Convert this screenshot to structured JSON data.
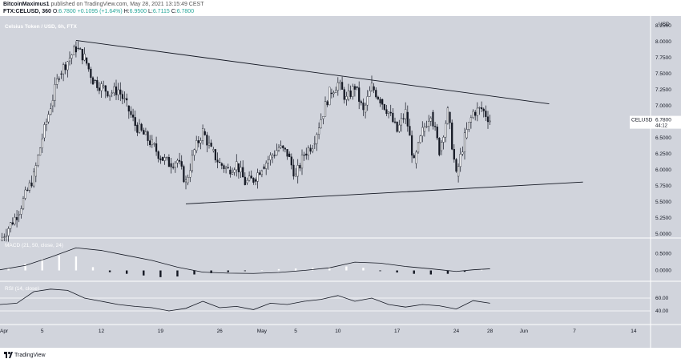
{
  "header": {
    "author": "BitcoinMaximus1",
    "published_text": "published on TradingView.com, May 28, 2021 13:15:49 CEST",
    "symbol": "FTX:CELUSD, 360",
    "o_label": "O:",
    "o_value": "6.7800",
    "change": "+0.1095 (+1.64%)",
    "h_label": "H:",
    "h_value": "6.9500",
    "l_label": "L:",
    "l_value": "6.7115",
    "c_label": "C:",
    "c_value": "6.7800"
  },
  "footer": {
    "brand": "TradingView"
  },
  "colors": {
    "background": "#d1d4dc",
    "candle": "#131722",
    "line": "#131722",
    "grid": "#c7cad2",
    "price_tag": "#ffffff"
  },
  "chart_data": [
    {
      "type": "line",
      "title": "Celsius Token / USD, 6h, FTX",
      "subtype": "candlestick",
      "y_axis_label": "USD",
      "y_ticks": [
        "8.2500",
        "8.0000",
        "7.7500",
        "7.5000",
        "7.2500",
        "7.0000",
        "6.7500",
        "6.5000",
        "6.2500",
        "6.0000",
        "5.7500",
        "5.5000",
        "5.2500",
        "5.0000"
      ],
      "ylim": [
        4.95,
        8.35
      ],
      "x_ticks": [
        "Apr",
        "5",
        "12",
        "19",
        "26",
        "May",
        "5",
        "10",
        "17",
        "24",
        "28",
        "Jun",
        "7",
        "14"
      ],
      "x_range": [
        "2021-03-31",
        "2021-06-16"
      ],
      "last_price": {
        "label": "CELUSD",
        "value": "6.7800",
        "countdown": "44:12"
      },
      "trendlines": [
        {
          "name": "upper",
          "from": [
            "2021-04-09",
            8.02
          ],
          "to": [
            "2021-06-04",
            7.03
          ]
        },
        {
          "name": "lower",
          "from": [
            "2021-04-22",
            5.47
          ],
          "to": [
            "2021-06-08",
            5.81
          ]
        }
      ],
      "price_path": [
        [
          "2021-03-31",
          4.9
        ],
        [
          "2021-04-02",
          5.3
        ],
        [
          "2021-04-04",
          5.9
        ],
        [
          "2021-04-05",
          6.5
        ],
        [
          "2021-04-06",
          7.0
        ],
        [
          "2021-04-07",
          7.5
        ],
        [
          "2021-04-08",
          7.7
        ],
        [
          "2021-04-09",
          7.9
        ],
        [
          "2021-04-10",
          7.75
        ],
        [
          "2021-04-11",
          7.4
        ],
        [
          "2021-04-12",
          7.3
        ],
        [
          "2021-04-13",
          7.2
        ],
        [
          "2021-04-14",
          7.25
        ],
        [
          "2021-04-15",
          7.0
        ],
        [
          "2021-04-16",
          6.7
        ],
        [
          "2021-04-17",
          6.55
        ],
        [
          "2021-04-18",
          6.4
        ],
        [
          "2021-04-19",
          6.2
        ],
        [
          "2021-04-20",
          6.1
        ],
        [
          "2021-04-21",
          6.15
        ],
        [
          "2021-04-22",
          5.8
        ],
        [
          "2021-04-23",
          6.3
        ],
        [
          "2021-04-24",
          6.6
        ],
        [
          "2021-04-25",
          6.3
        ],
        [
          "2021-04-26",
          6.1
        ],
        [
          "2021-04-27",
          6.0
        ],
        [
          "2021-04-28",
          6.1
        ],
        [
          "2021-04-29",
          5.8
        ],
        [
          "2021-04-30",
          5.85
        ],
        [
          "2021-05-01",
          6.05
        ],
        [
          "2021-05-02",
          6.2
        ],
        [
          "2021-05-03",
          6.35
        ],
        [
          "2021-05-04",
          6.25
        ],
        [
          "2021-05-05",
          5.9
        ],
        [
          "2021-05-06",
          6.25
        ],
        [
          "2021-05-07",
          6.4
        ],
        [
          "2021-05-08",
          6.8
        ],
        [
          "2021-05-09",
          7.2
        ],
        [
          "2021-05-10",
          7.35
        ],
        [
          "2021-05-11",
          7.1
        ],
        [
          "2021-05-12",
          7.3
        ],
        [
          "2021-05-13",
          6.9
        ],
        [
          "2021-05-14",
          7.3
        ],
        [
          "2021-05-15",
          7.1
        ],
        [
          "2021-05-16",
          6.9
        ],
        [
          "2021-05-17",
          6.6
        ],
        [
          "2021-05-18",
          6.9
        ],
        [
          "2021-05-19",
          6.1
        ],
        [
          "2021-05-20",
          6.6
        ],
        [
          "2021-05-21",
          6.9
        ],
        [
          "2021-05-22",
          6.3
        ],
        [
          "2021-05-23",
          6.9
        ],
        [
          "2021-05-24",
          5.9
        ],
        [
          "2021-05-25",
          6.5
        ],
        [
          "2021-05-26",
          6.9
        ],
        [
          "2021-05-27",
          6.95
        ],
        [
          "2021-05-28",
          6.78
        ]
      ]
    },
    {
      "type": "line",
      "title": "MACD (21, 50, close, 24)",
      "y_ticks": [
        "0.5000",
        "0.0000"
      ],
      "ylim": [
        -0.3,
        0.95
      ],
      "macd": [
        [
          "2021-03-31",
          0.02
        ],
        [
          "2021-04-03",
          0.15
        ],
        [
          "2021-04-06",
          0.4
        ],
        [
          "2021-04-09",
          0.68
        ],
        [
          "2021-04-12",
          0.6
        ],
        [
          "2021-04-15",
          0.45
        ],
        [
          "2021-04-18",
          0.3
        ],
        [
          "2021-04-21",
          0.1
        ],
        [
          "2021-04-24",
          -0.05
        ],
        [
          "2021-04-27",
          -0.08
        ],
        [
          "2021-04-30",
          -0.09
        ],
        [
          "2021-05-03",
          -0.06
        ],
        [
          "2021-05-06",
          0.0
        ],
        [
          "2021-05-09",
          0.08
        ],
        [
          "2021-05-12",
          0.25
        ],
        [
          "2021-05-15",
          0.22
        ],
        [
          "2021-05-18",
          0.12
        ],
        [
          "2021-05-21",
          0.05
        ],
        [
          "2021-05-24",
          -0.03
        ],
        [
          "2021-05-26",
          0.02
        ],
        [
          "2021-05-28",
          0.05
        ]
      ],
      "histogram": [
        [
          "2021-04-01",
          0.08
        ],
        [
          "2021-04-03",
          0.2
        ],
        [
          "2021-04-05",
          0.35
        ],
        [
          "2021-04-07",
          0.45
        ],
        [
          "2021-04-09",
          0.42
        ],
        [
          "2021-04-11",
          0.1
        ],
        [
          "2021-04-13",
          -0.05
        ],
        [
          "2021-04-15",
          -0.1
        ],
        [
          "2021-04-17",
          -0.15
        ],
        [
          "2021-04-19",
          -0.2
        ],
        [
          "2021-04-21",
          -0.18
        ],
        [
          "2021-04-23",
          -0.12
        ],
        [
          "2021-04-25",
          -0.08
        ],
        [
          "2021-04-27",
          -0.05
        ],
        [
          "2021-04-29",
          -0.02
        ],
        [
          "2021-05-01",
          0.01
        ],
        [
          "2021-05-03",
          0.04
        ],
        [
          "2021-05-05",
          0.06
        ],
        [
          "2021-05-07",
          0.08
        ],
        [
          "2021-05-09",
          0.1
        ],
        [
          "2021-05-11",
          0.12
        ],
        [
          "2021-05-13",
          0.08
        ],
        [
          "2021-05-15",
          -0.02
        ],
        [
          "2021-05-17",
          -0.06
        ],
        [
          "2021-05-19",
          -0.1
        ],
        [
          "2021-05-21",
          -0.12
        ],
        [
          "2021-05-23",
          -0.1
        ],
        [
          "2021-05-25",
          -0.04
        ],
        [
          "2021-05-27",
          0.03
        ]
      ]
    },
    {
      "type": "line",
      "title": "RSI (14, close)",
      "y_ticks": [
        "60.00",
        "40.00"
      ],
      "ylim": [
        20,
        85
      ],
      "rsi": [
        [
          "2021-03-31",
          50
        ],
        [
          "2021-04-02",
          52
        ],
        [
          "2021-04-04",
          70
        ],
        [
          "2021-04-06",
          74
        ],
        [
          "2021-04-08",
          72
        ],
        [
          "2021-04-10",
          60
        ],
        [
          "2021-04-12",
          55
        ],
        [
          "2021-04-14",
          50
        ],
        [
          "2021-04-16",
          47
        ],
        [
          "2021-04-18",
          45
        ],
        [
          "2021-04-20",
          40
        ],
        [
          "2021-04-22",
          44
        ],
        [
          "2021-04-24",
          55
        ],
        [
          "2021-04-26",
          45
        ],
        [
          "2021-04-28",
          47
        ],
        [
          "2021-04-30",
          42
        ],
        [
          "2021-05-02",
          52
        ],
        [
          "2021-05-04",
          50
        ],
        [
          "2021-05-06",
          55
        ],
        [
          "2021-05-08",
          58
        ],
        [
          "2021-05-10",
          64
        ],
        [
          "2021-05-12",
          55
        ],
        [
          "2021-05-14",
          60
        ],
        [
          "2021-05-16",
          50
        ],
        [
          "2021-05-18",
          46
        ],
        [
          "2021-05-20",
          50
        ],
        [
          "2021-05-22",
          48
        ],
        [
          "2021-05-24",
          43
        ],
        [
          "2021-05-26",
          56
        ],
        [
          "2021-05-28",
          52
        ]
      ]
    }
  ]
}
